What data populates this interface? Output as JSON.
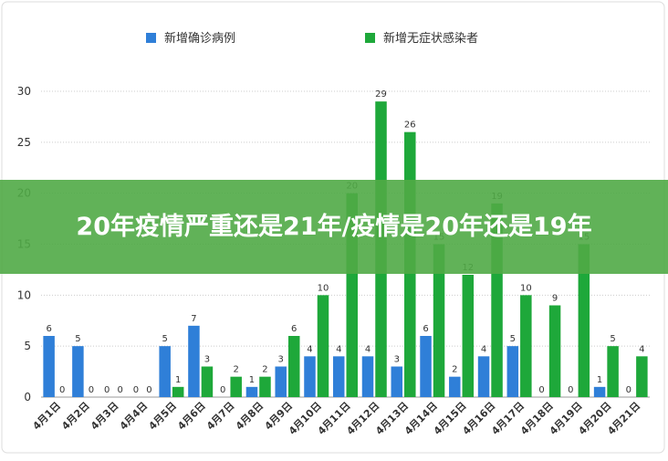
{
  "chart_data": {
    "type": "bar",
    "categories": [
      "4月1日",
      "4月2日",
      "4月3日",
      "4月4日",
      "4月5日",
      "4月6日",
      "4月7日",
      "4月8日",
      "4月9日",
      "4月10日",
      "4月11日",
      "4月12日",
      "4月13日",
      "4月14日",
      "4月15日",
      "4月16日",
      "4月17日",
      "4月18日",
      "4月19日",
      "4月20日",
      "4月21日"
    ],
    "series": [
      {
        "name": "新增确诊病例",
        "color": "#2f7fd8",
        "values": [
          6,
          5,
          0,
          0,
          5,
          7,
          0,
          1,
          3,
          4,
          4,
          4,
          3,
          6,
          2,
          4,
          5,
          0,
          0,
          1,
          0
        ]
      },
      {
        "name": "新增无症状感染者",
        "color": "#1ea83a",
        "values": [
          0,
          0,
          0,
          0,
          1,
          3,
          2,
          2,
          6,
          10,
          20,
          29,
          26,
          15,
          12,
          19,
          10,
          9,
          15,
          5,
          4
        ]
      }
    ],
    "ylim": [
      0,
      30
    ],
    "yticks": [
      0,
      5,
      10,
      15,
      20,
      25,
      30
    ],
    "grid": true,
    "legend": "top"
  },
  "banner": {
    "text": "20年疫情严重还是21年/疫情是20年还是19年"
  }
}
